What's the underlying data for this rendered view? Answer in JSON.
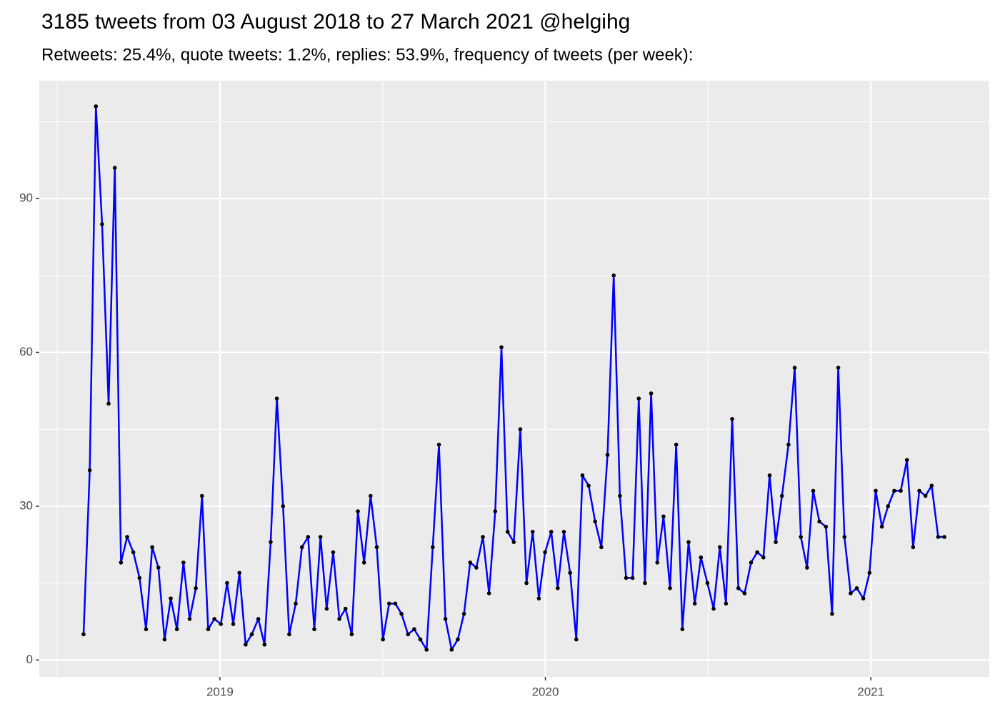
{
  "chart_data": {
    "type": "line",
    "title": "3185 tweets from 03 August 2018 to 27 March 2021 @helgihg",
    "subtitle": "Retweets: 25.4%, quote tweets: 1.2%, replies: 53.9%, frequency of tweets (per week):",
    "x": [
      2018.581,
      2018.6,
      2018.619,
      2018.638,
      2018.658,
      2018.677,
      2018.696,
      2018.715,
      2018.734,
      2018.753,
      2018.773,
      2018.792,
      2018.811,
      2018.83,
      2018.849,
      2018.868,
      2018.888,
      2018.907,
      2018.926,
      2018.945,
      2018.964,
      2018.983,
      2019.003,
      2019.022,
      2019.041,
      2019.06,
      2019.079,
      2019.098,
      2019.118,
      2019.137,
      2019.156,
      2019.175,
      2019.194,
      2019.213,
      2019.233,
      2019.252,
      2019.271,
      2019.29,
      2019.309,
      2019.328,
      2019.348,
      2019.367,
      2019.386,
      2019.405,
      2019.424,
      2019.443,
      2019.463,
      2019.482,
      2019.501,
      2019.52,
      2019.539,
      2019.558,
      2019.578,
      2019.597,
      2019.616,
      2019.635,
      2019.654,
      2019.673,
      2019.693,
      2019.712,
      2019.731,
      2019.75,
      2019.769,
      2019.788,
      2019.808,
      2019.827,
      2019.846,
      2019.865,
      2019.884,
      2019.903,
      2019.923,
      2019.942,
      2019.961,
      2019.98,
      2019.999,
      2020.018,
      2020.038,
      2020.057,
      2020.076,
      2020.095,
      2020.114,
      2020.133,
      2020.153,
      2020.172,
      2020.191,
      2020.21,
      2020.229,
      2020.248,
      2020.268,
      2020.287,
      2020.306,
      2020.325,
      2020.344,
      2020.363,
      2020.383,
      2020.402,
      2020.421,
      2020.44,
      2020.459,
      2020.478,
      2020.498,
      2020.517,
      2020.536,
      2020.555,
      2020.574,
      2020.593,
      2020.612,
      2020.632,
      2020.651,
      2020.67,
      2020.689,
      2020.708,
      2020.727,
      2020.747,
      2020.766,
      2020.785,
      2020.804,
      2020.823,
      2020.842,
      2020.862,
      2020.881,
      2020.9,
      2020.919,
      2020.938,
      2020.957,
      2020.977,
      2020.996,
      2021.015,
      2021.034,
      2021.053,
      2021.072,
      2021.092,
      2021.111,
      2021.13,
      2021.149,
      2021.168,
      2021.187,
      2021.207,
      2021.226
    ],
    "values": [
      5,
      37,
      108,
      85,
      50,
      96,
      19,
      24,
      21,
      16,
      6,
      22,
      18,
      4,
      12,
      6,
      19,
      8,
      14,
      32,
      6,
      8,
      7,
      15,
      7,
      17,
      3,
      5,
      8,
      3,
      23,
      51,
      30,
      5,
      11,
      22,
      24,
      6,
      24,
      10,
      21,
      8,
      10,
      5,
      29,
      19,
      32,
      22,
      4,
      11,
      11,
      9,
      5,
      6,
      4,
      2,
      22,
      42,
      8,
      2,
      4,
      9,
      19,
      18,
      24,
      13,
      29,
      61,
      25,
      23,
      45,
      15,
      25,
      12,
      21,
      25,
      14,
      25,
      17,
      4,
      36,
      34,
      27,
      22,
      40,
      75,
      32,
      16,
      16,
      51,
      15,
      52,
      19,
      28,
      14,
      42,
      6,
      23,
      11,
      20,
      15,
      10,
      22,
      11,
      47,
      14,
      13,
      19,
      21,
      20,
      36,
      23,
      32,
      42,
      57,
      24,
      18,
      33,
      27,
      26,
      9,
      57,
      24,
      13,
      14,
      12,
      17,
      33,
      26,
      30,
      33,
      33,
      39,
      22,
      33,
      32,
      34,
      24,
      24
    ],
    "color": "#0000ff",
    "point_color": "#000000",
    "xlim": [
      2018.445,
      2021.364
    ],
    "xticks": [
      2019,
      2020,
      2021
    ],
    "x_minor_ticks": [
      2018.5,
      2019.5,
      2020.5
    ],
    "ylim": [
      -3.3,
      113
    ],
    "yticks": [
      0,
      30,
      60,
      90
    ],
    "y_minor_ticks": [
      15,
      45,
      75,
      105
    ],
    "grid": true
  }
}
